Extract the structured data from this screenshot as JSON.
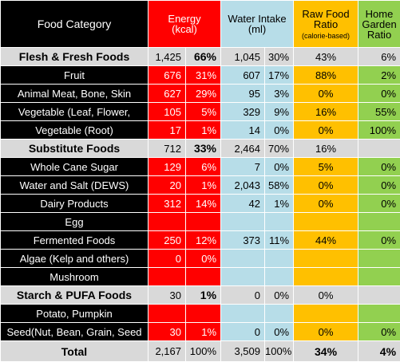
{
  "header": {
    "food_category": "Food Category",
    "energy": "Energy",
    "energy_unit": "(kcal)",
    "water": "Water Intake",
    "water_unit": "(ml)",
    "raw_food": "Raw Food",
    "raw_ratio": "Ratio",
    "raw_note": "(calorie-based)",
    "home_garden": "Home",
    "home_garden_2": "Garden",
    "home_garden_3": "Ratio"
  },
  "rows": [
    {
      "type": "group",
      "name": "Flesh & Fresh Foods",
      "kcal": "1,425",
      "kcal_pct": "66%",
      "water": "1,045",
      "water_pct": "30%",
      "raw": "43%",
      "home": "6%"
    },
    {
      "type": "item",
      "name": "Fruit",
      "kcal": "676",
      "kcal_pct": "31%",
      "water": "607",
      "water_pct": "17%",
      "raw": "88%",
      "home": "2%"
    },
    {
      "type": "item",
      "name": "Animal Meat, Bone, Skin",
      "kcal": "627",
      "kcal_pct": "29%",
      "water": "95",
      "water_pct": "3%",
      "raw": "0%",
      "home": "0%"
    },
    {
      "type": "item",
      "name": "Vegetable (Leaf, Flower,",
      "kcal": "105",
      "kcal_pct": "5%",
      "water": "329",
      "water_pct": "9%",
      "raw": "16%",
      "home": "55%"
    },
    {
      "type": "item",
      "name": "Vegetable (Root)",
      "kcal": "17",
      "kcal_pct": "1%",
      "water": "14",
      "water_pct": "0%",
      "raw": "0%",
      "home": "100%"
    },
    {
      "type": "group",
      "name": "Substitute Foods",
      "kcal": "712",
      "kcal_pct": "33%",
      "water": "2,464",
      "water_pct": "70%",
      "raw": "16%",
      "home": ""
    },
    {
      "type": "item",
      "name": "Whole Cane Sugar",
      "kcal": "129",
      "kcal_pct": "6%",
      "water": "7",
      "water_pct": "0%",
      "raw": "5%",
      "home": "0%"
    },
    {
      "type": "item",
      "name": "Water and Salt (DEWS)",
      "kcal": "20",
      "kcal_pct": "1%",
      "water": "2,043",
      "water_pct": "58%",
      "raw": "0%",
      "home": "0%"
    },
    {
      "type": "item",
      "name": "Dairy Products",
      "kcal": "312",
      "kcal_pct": "14%",
      "water": "42",
      "water_pct": "1%",
      "raw": "0%",
      "home": "0%"
    },
    {
      "type": "item",
      "name": "Egg",
      "kcal": "",
      "kcal_pct": "",
      "water": "",
      "water_pct": "",
      "raw": "",
      "home": ""
    },
    {
      "type": "item",
      "name": "Fermented Foods",
      "kcal": "250",
      "kcal_pct": "12%",
      "water": "373",
      "water_pct": "11%",
      "raw": "44%",
      "home": "0%"
    },
    {
      "type": "item",
      "name": "Algae (Kelp and others)",
      "kcal": "0",
      "kcal_pct": "0%",
      "water": "",
      "water_pct": "",
      "raw": "",
      "home": ""
    },
    {
      "type": "item",
      "name": "Mushroom",
      "kcal": "",
      "kcal_pct": "",
      "water": "",
      "water_pct": "",
      "raw": "",
      "home": ""
    },
    {
      "type": "group",
      "name": "Starch & PUFA Foods",
      "kcal": "30",
      "kcal_pct": "1%",
      "water": "0",
      "water_pct": "0%",
      "raw": "0%",
      "home": ""
    },
    {
      "type": "item",
      "name": "Potato, Pumpkin",
      "kcal": "",
      "kcal_pct": "",
      "water": "",
      "water_pct": "",
      "raw": "",
      "home": ""
    },
    {
      "type": "item",
      "name": "Seed(Nut, Bean, Grain, Seed",
      "kcal": "30",
      "kcal_pct": "1%",
      "water": "0",
      "water_pct": "0%",
      "raw": "0%",
      "home": "0%"
    }
  ],
  "total": {
    "name": "Total",
    "kcal": "2,167",
    "kcal_pct": "100%",
    "water": "3,509",
    "water_pct": "100%",
    "raw": "34%",
    "home": "4%"
  },
  "colors": {
    "energy": "#ff0000",
    "water": "#b7dde8",
    "raw": "#ffc000",
    "home": "#92d050",
    "item": "#000000",
    "group": "#d9d9d9"
  }
}
